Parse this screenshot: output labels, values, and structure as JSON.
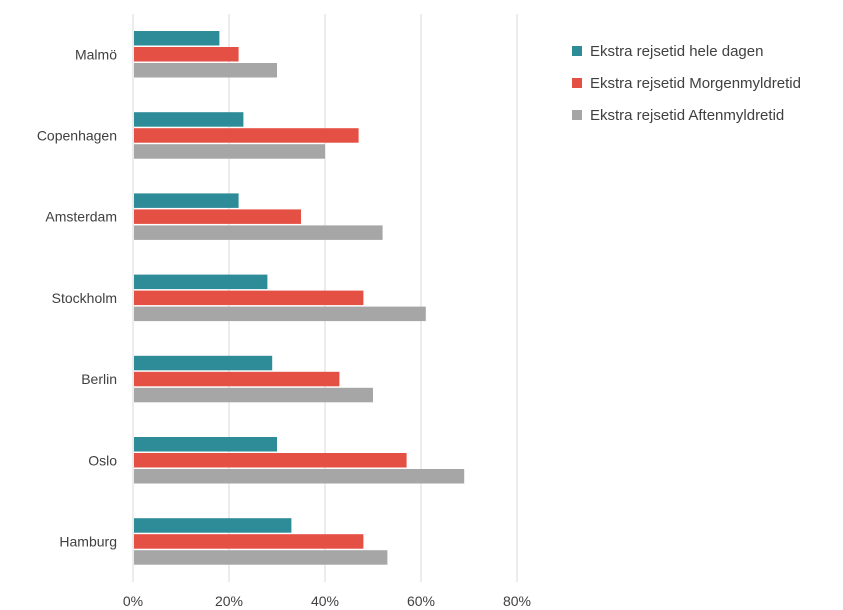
{
  "chart_data": {
    "type": "bar",
    "orientation": "horizontal",
    "categories": [
      "Malmö",
      "Copenhagen",
      "Amsterdam",
      "Stockholm",
      "Berlin",
      "Oslo",
      "Hamburg"
    ],
    "series": [
      {
        "name": "Ekstra rejsetid hele dagen",
        "color": "#2e8b98",
        "values": [
          18,
          23,
          22,
          28,
          29,
          30,
          33
        ]
      },
      {
        "name": "Ekstra rejsetid Morgenmyldretid",
        "color": "#e55044",
        "values": [
          22,
          47,
          35,
          48,
          43,
          57,
          48
        ]
      },
      {
        "name": "Ekstra rejsetid Aftenmyldretid",
        "color": "#a6a6a6",
        "values": [
          30,
          40,
          52,
          61,
          50,
          69,
          53
        ]
      }
    ],
    "xlim": [
      0,
      80
    ],
    "xticks": [
      "0%",
      "20%",
      "40%",
      "60%",
      "80%"
    ],
    "grid": true,
    "legend_position": "top-right"
  }
}
